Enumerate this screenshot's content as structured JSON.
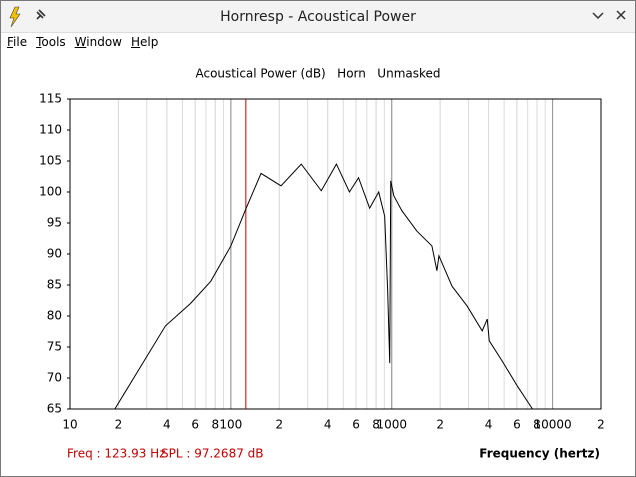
{
  "window": {
    "title": "Hornresp - Acoustical Power"
  },
  "menu": [
    "File",
    "Tools",
    "Window",
    "Help"
  ],
  "chart_data": {
    "type": "line",
    "title": "Acoustical Power (dB)   Horn   Unmasked",
    "x_label": "Frequency (hertz)",
    "x": [
      19,
      39.2,
      56,
      75,
      100,
      123.93,
      154,
      205,
      274,
      365,
      453,
      546,
      622,
      729,
      830,
      904,
      944,
      972,
      986,
      1030,
      1155,
      1433,
      1778,
      1910,
      1966,
      2371,
      2944,
      3652,
      3925,
      4040,
      4870,
      6040,
      7500
    ],
    "values": [
      65,
      78.4,
      82,
      85.6,
      91.3,
      97.27,
      103,
      101,
      104.5,
      100.2,
      104.5,
      100,
      102.3,
      97.4,
      100,
      96.1,
      84,
      72.4,
      101.8,
      99.4,
      97,
      93.7,
      91.3,
      87.3,
      89.7,
      84.8,
      81.6,
      77.6,
      79.5,
      76,
      72.7,
      68.7,
      65
    ],
    "color": "#000000",
    "xscale": "log",
    "xlim": [
      10,
      20000
    ],
    "xticks": [
      10,
      {
        "value": 20,
        "label": "2"
      },
      {
        "value": 40,
        "label": "4"
      },
      {
        "value": 60,
        "label": "6"
      },
      {
        "value": 80,
        "label": "8"
      },
      100,
      {
        "value": 200,
        "label": "2"
      },
      {
        "value": 400,
        "label": "4"
      },
      {
        "value": 600,
        "label": "6"
      },
      {
        "value": 800,
        "label": "8"
      },
      1000,
      {
        "value": 2000,
        "label": "2"
      },
      {
        "value": 4000,
        "label": "4"
      },
      {
        "value": 6000,
        "label": "6"
      },
      {
        "value": 8000,
        "label": "8"
      },
      10000,
      {
        "value": 20000,
        "label": "2"
      }
    ],
    "ylim": [
      65,
      115
    ],
    "yticks": [
      65,
      70,
      75,
      80,
      85,
      90,
      95,
      100,
      105,
      110,
      115
    ],
    "grid": true,
    "cursor_x": 123.93,
    "cursor_color": "#c00000",
    "freq_readout": "Freq : 123.93 Hz",
    "spl_readout": "SPL : 97.2687 dB"
  }
}
